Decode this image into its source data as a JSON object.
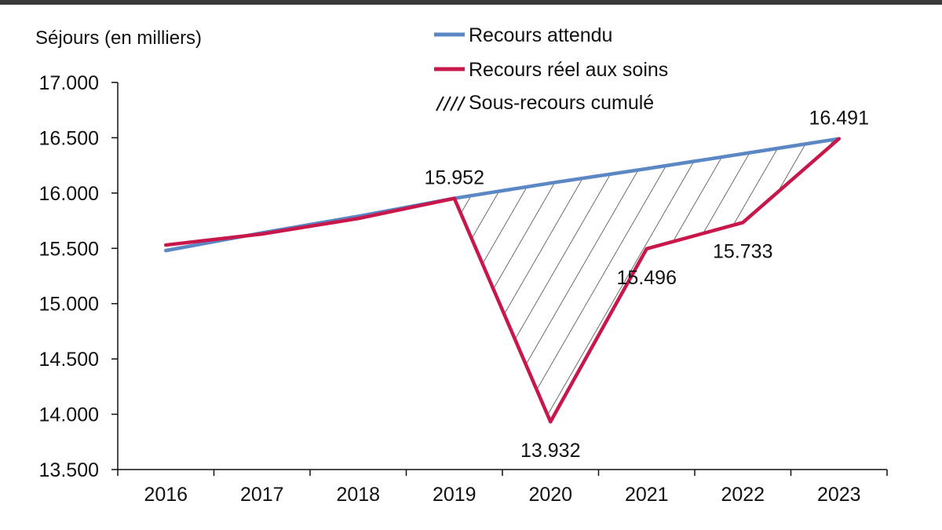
{
  "chart_data": {
    "type": "line",
    "ylabel": "Séjours (en milliers)",
    "xlabel": "",
    "categories": [
      "2016",
      "2017",
      "2018",
      "2019",
      "2020",
      "2021",
      "2022",
      "2023"
    ],
    "ylim": [
      13500,
      17000
    ],
    "y_ticks": [
      13500,
      14000,
      14500,
      15000,
      15500,
      16000,
      16500,
      17000
    ],
    "y_tick_labels": [
      "13.500",
      "14.000",
      "14.500",
      "15.000",
      "15.500",
      "16.000",
      "16.500",
      "17.000"
    ],
    "series": [
      {
        "name": "Recours attendu",
        "color": "#5b87c5",
        "values": [
          15480,
          15640,
          15790,
          15952,
          16090,
          16220,
          16355,
          16491
        ]
      },
      {
        "name": "Recours réel aux soins",
        "color": "#c8174a",
        "values": [
          15530,
          15630,
          15770,
          15952,
          13932,
          15496,
          15733,
          16491
        ]
      }
    ],
    "shaded_area": {
      "name": "Sous-recours cumulé",
      "between": [
        "Recours attendu",
        "Recours réel aux soins"
      ],
      "x_range": [
        "2019",
        "2023"
      ],
      "style": "diagonal-hatch"
    },
    "annotations": [
      {
        "x": "2019",
        "series": "Recours réel aux soins",
        "text": "15.952",
        "placement": "above"
      },
      {
        "x": "2020",
        "series": "Recours réel aux soins",
        "text": "13.932",
        "placement": "below"
      },
      {
        "x": "2021",
        "series": "Recours réel aux soins",
        "text": "15.496",
        "placement": "below"
      },
      {
        "x": "2022",
        "series": "Recours réel aux soins",
        "text": "15.733",
        "placement": "below"
      },
      {
        "x": "2023",
        "series": "Recours réel aux soins",
        "text": "16.491",
        "placement": "above"
      }
    ],
    "legend": {
      "placement": "top-center",
      "entries": [
        "Recours attendu",
        "Recours réel aux soins",
        "Sous-recours cumulé"
      ]
    },
    "grid": false
  }
}
